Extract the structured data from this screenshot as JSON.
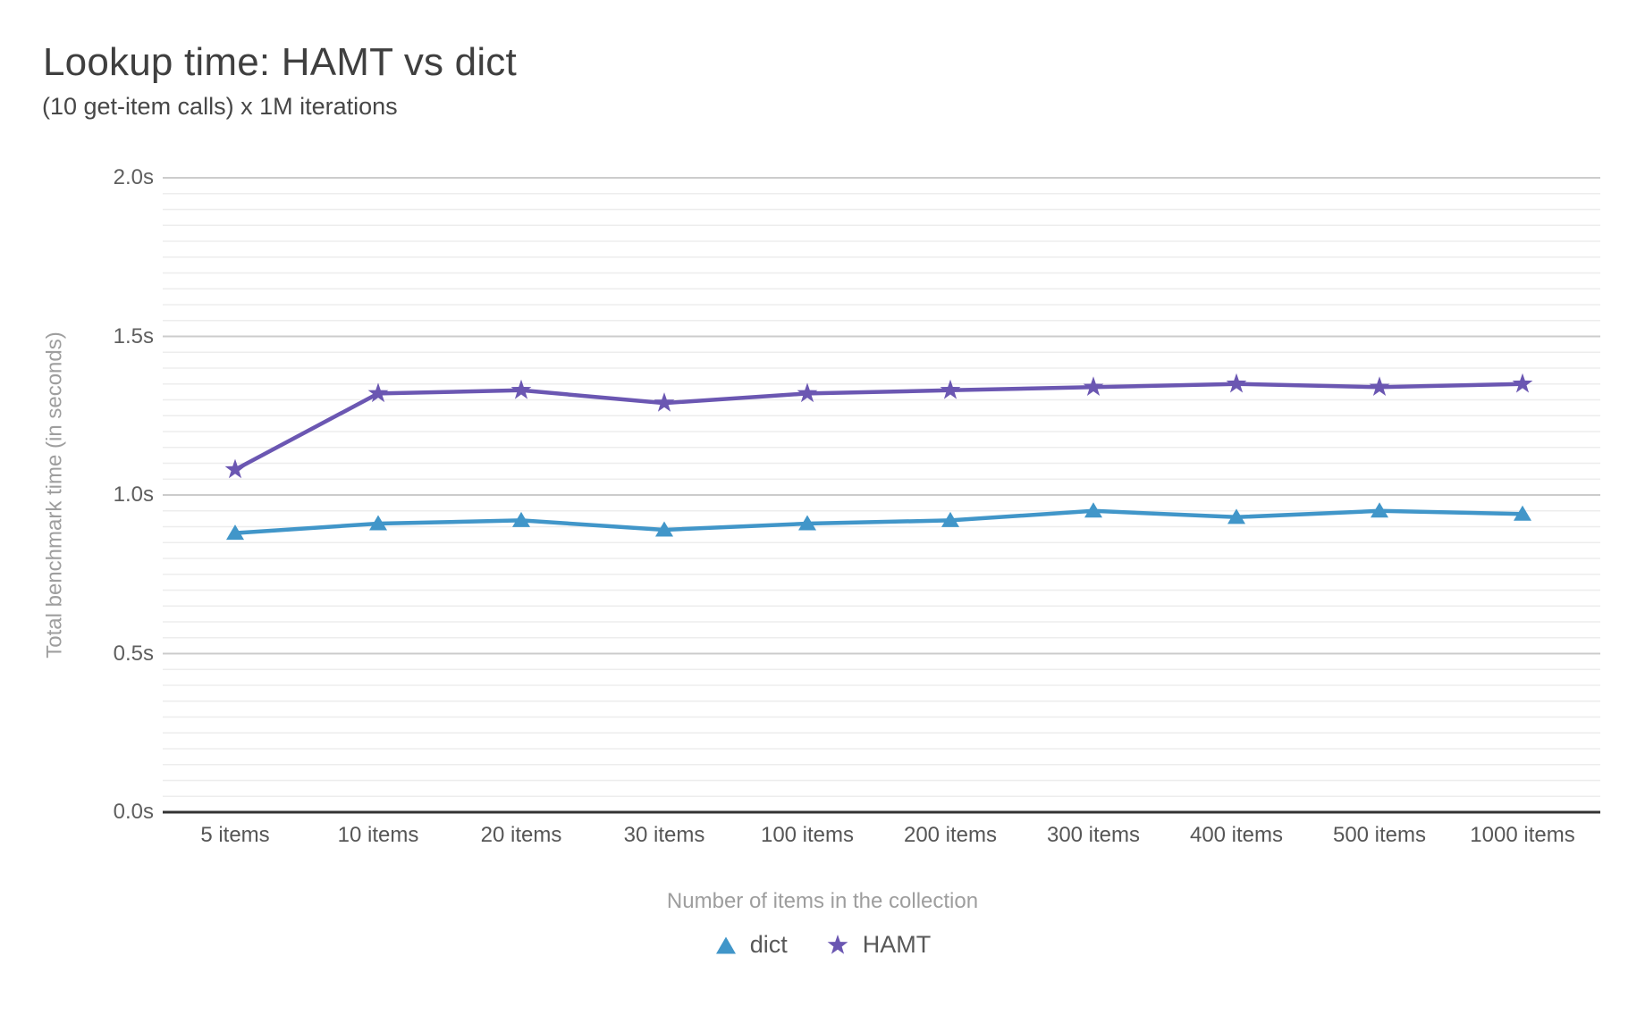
{
  "chart_data": {
    "type": "line",
    "title": "Lookup time: HAMT vs dict",
    "subtitle": "(10 get-item calls) x 1M iterations",
    "xlabel": "Number of items in the collection",
    "ylabel": "Total benchmark time (in seconds)",
    "categories": [
      "5 items",
      "10 items",
      "20 items",
      "30 items",
      "100 items",
      "200 items",
      "300 items",
      "400 items",
      "500 items",
      "1000 items"
    ],
    "series": [
      {
        "name": "dict",
        "marker": "triangle",
        "color": "#4196c9",
        "values": [
          0.88,
          0.91,
          0.92,
          0.89,
          0.91,
          0.92,
          0.95,
          0.93,
          0.95,
          0.94
        ]
      },
      {
        "name": "HAMT",
        "marker": "star",
        "color": "#6b57b2",
        "values": [
          1.08,
          1.32,
          1.33,
          1.29,
          1.32,
          1.33,
          1.34,
          1.35,
          1.34,
          1.35
        ]
      }
    ],
    "ylim": [
      0,
      2.0
    ],
    "y_ticks": [
      {
        "value": 0.0,
        "label": "0.0s"
      },
      {
        "value": 0.5,
        "label": "0.5s"
      },
      {
        "value": 1.0,
        "label": "1.0s"
      },
      {
        "value": 1.5,
        "label": "1.5s"
      },
      {
        "value": 2.0,
        "label": "2.0s"
      }
    ],
    "minor_grid_step": 0.05,
    "major_grid_step": 0.5,
    "grid": true,
    "legend_position": "bottom"
  },
  "colors": {
    "background": "#ffffff",
    "grid_major": "#cccccc",
    "grid_minor": "#ededed",
    "axis_line": "#333333",
    "tick_label": "#5f5f5f",
    "axis_title": "#9e9e9e",
    "title_text": "#3f3f3f"
  }
}
